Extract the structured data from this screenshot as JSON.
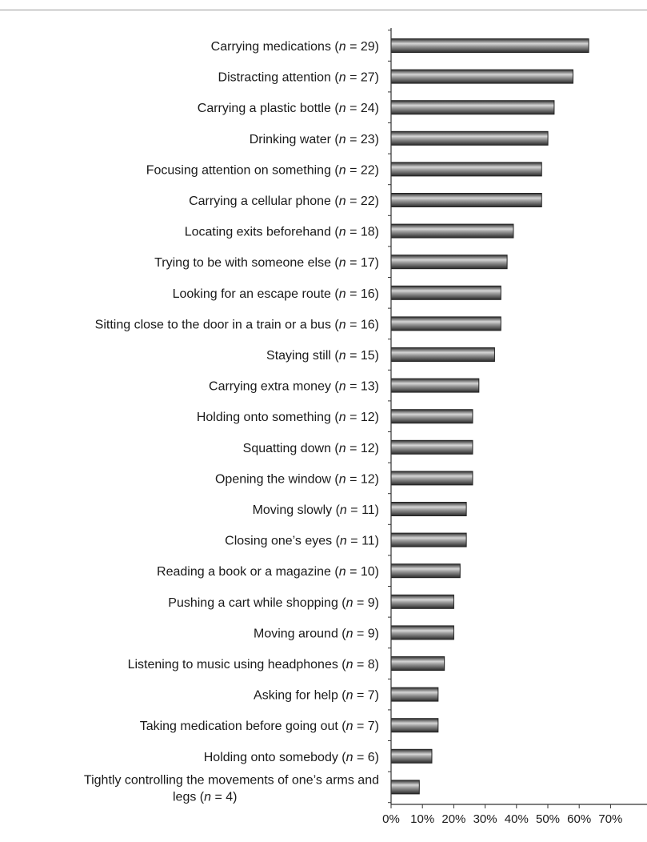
{
  "chart_data": {
    "type": "bar",
    "orientation": "horizontal",
    "categories": [
      "Carrying medications",
      "Distracting attention",
      "Carrying a plastic bottle",
      "Drinking water",
      "Focusing attention on something",
      "Carrying a cellular phone",
      "Locating exits beforehand",
      "Trying to be with someone else",
      "Looking for an escape route",
      "Sitting close to the door in a train or a bus",
      "Staying still",
      "Carrying extra money",
      "Holding onto something",
      "Squatting down",
      "Opening the window",
      "Moving slowly",
      "Closing one’s eyes",
      "Reading a book or a magazine",
      "Pushing a cart while shopping",
      "Moving around",
      "Listening to music using headphones",
      "Asking for help",
      "Taking medication before going out",
      "Holding onto somebody",
      "Tightly controlling the movements of one’s arms and legs"
    ],
    "n": [
      29,
      27,
      24,
      23,
      22,
      22,
      18,
      17,
      16,
      16,
      15,
      13,
      12,
      12,
      12,
      11,
      11,
      10,
      9,
      9,
      8,
      7,
      7,
      6,
      4
    ],
    "values": [
      63,
      58,
      52,
      50,
      48,
      48,
      39,
      37,
      35,
      35,
      33,
      28,
      26,
      26,
      26,
      24,
      24,
      22,
      20,
      20,
      17,
      15,
      15,
      13,
      9
    ],
    "xlim": [
      0,
      70
    ],
    "xticks": [
      "0%",
      "10%",
      "20%",
      "30%",
      "40%",
      "50%",
      "60%",
      "70%"
    ],
    "title": "",
    "xlabel": "",
    "ylabel": "",
    "grid": false,
    "bar_color": "#6a6a6a"
  }
}
